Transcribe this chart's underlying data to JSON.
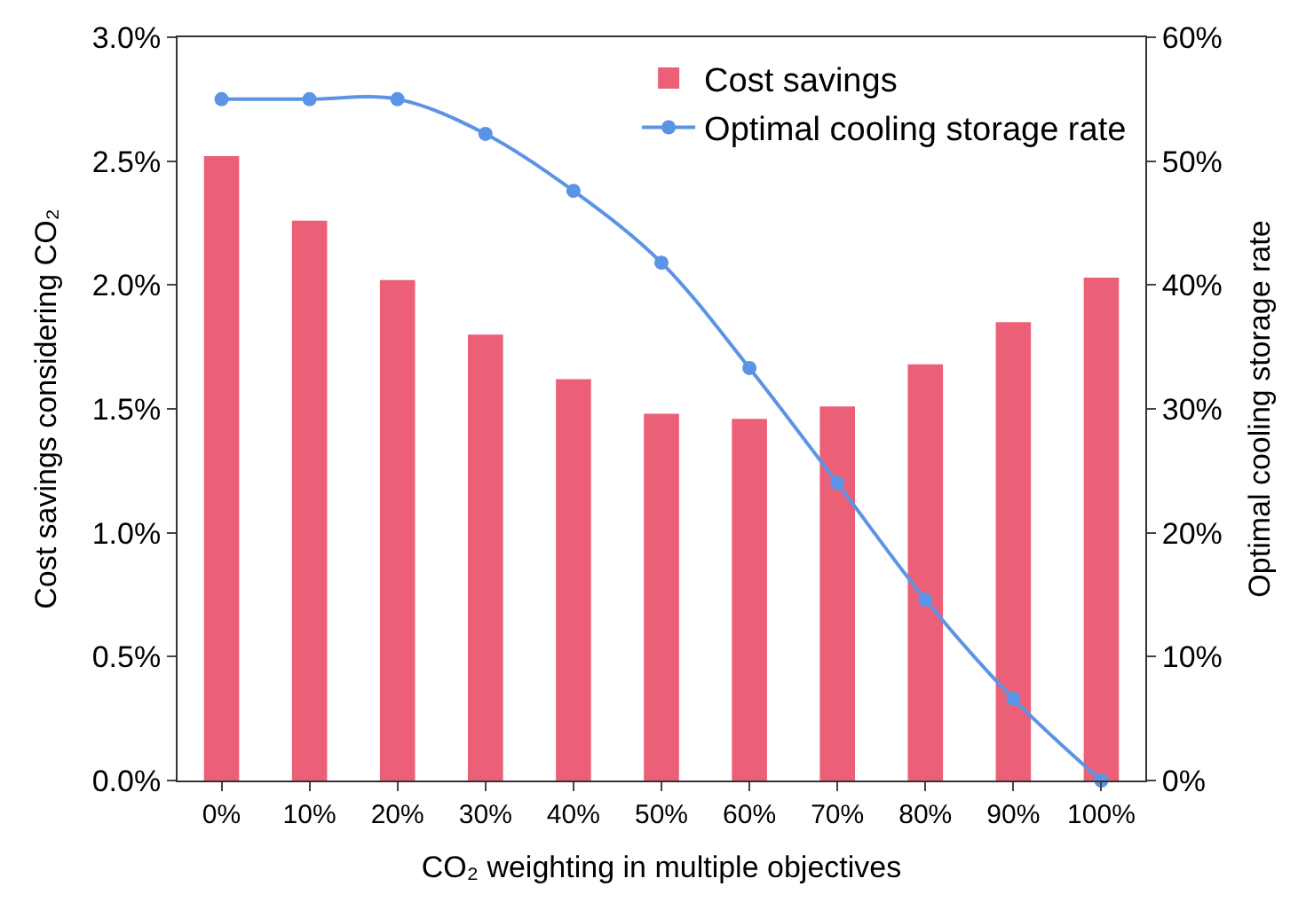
{
  "chart_data": {
    "type": "bar",
    "xlabel": "CO₂ weighting in multiple objectives",
    "ylabel": "Cost savings considering CO₂",
    "y2label": "Optimal cooling storage rate",
    "categories": [
      "0%",
      "10%",
      "20%",
      "30%",
      "40%",
      "50%",
      "60%",
      "70%",
      "80%",
      "90%",
      "100%"
    ],
    "series": [
      {
        "name": "Cost savings",
        "color": "#ec6077",
        "values": [
          2.52,
          2.26,
          2.02,
          1.8,
          1.62,
          1.48,
          1.46,
          1.51,
          1.68,
          1.85,
          2.03
        ]
      },
      {
        "name": "Optimal cooling storage rate",
        "type": "line",
        "axis": "y2",
        "color": "#5b93e6",
        "marker": "circle",
        "values": [
          55.0,
          55.0,
          55.0,
          52.2,
          47.6,
          41.8,
          33.3,
          24.0,
          14.6,
          6.6,
          0
        ]
      }
    ],
    "ylim": [
      0,
      3.0
    ],
    "yticks": [
      {
        "value": 0,
        "label": "0.0%"
      },
      {
        "value": 0.5,
        "label": "0.5%"
      },
      {
        "value": 1.0,
        "label": "1.0%"
      },
      {
        "value": 1.5,
        "label": "1.5%"
      },
      {
        "value": 2.0,
        "label": "2.0%"
      },
      {
        "value": 2.5,
        "label": "2.5%"
      },
      {
        "value": 3.0,
        "label": "3.0%"
      }
    ],
    "y2lim": [
      0,
      60
    ],
    "y2ticks": [
      {
        "value": 0,
        "label": "0%"
      },
      {
        "value": 10,
        "label": "10%"
      },
      {
        "value": 20,
        "label": "20%"
      },
      {
        "value": 30,
        "label": "30%"
      },
      {
        "value": 40,
        "label": "40%"
      },
      {
        "value": 50,
        "label": "50%"
      },
      {
        "value": 60,
        "label": "60%"
      }
    ],
    "legend": "top right"
  }
}
